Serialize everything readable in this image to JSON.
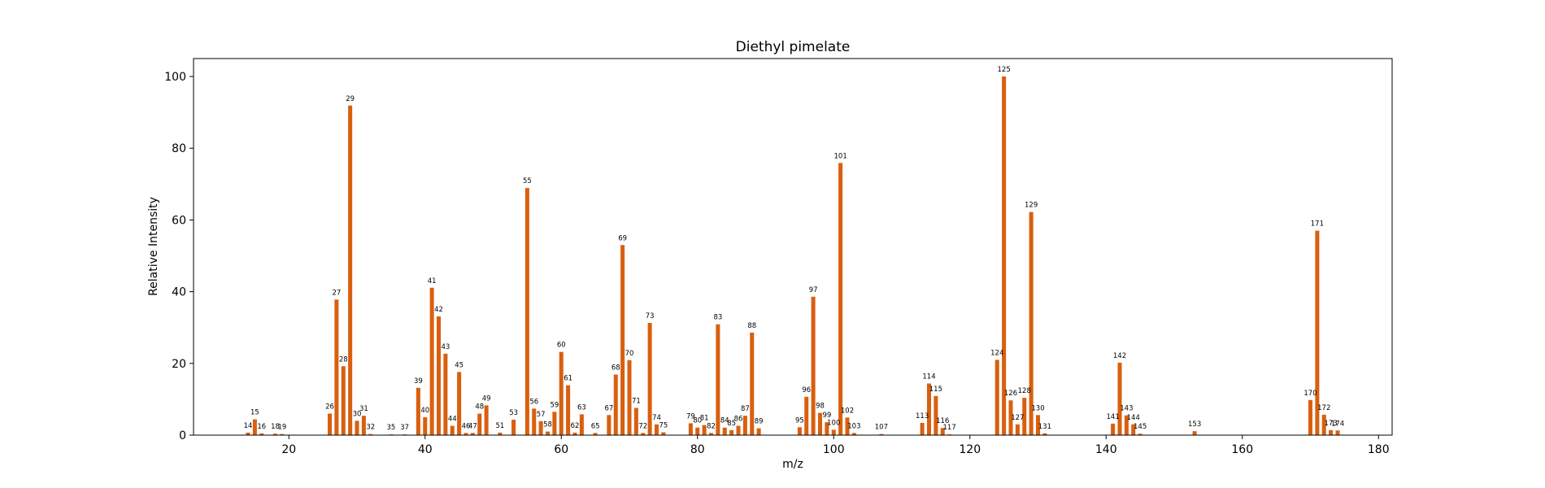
{
  "chart_data": {
    "type": "bar",
    "title": "Diethyl pimelate",
    "xlabel": "m/z",
    "ylabel": "Relative Intensity",
    "xlim": [
      6,
      182
    ],
    "ylim": [
      0,
      105
    ],
    "xticks": [
      20,
      40,
      60,
      80,
      100,
      120,
      140,
      160,
      180
    ],
    "yticks": [
      0,
      20,
      40,
      60,
      80,
      100
    ],
    "grid": false,
    "bar_color": "#d95f0e",
    "points": [
      {
        "mz": 14,
        "intensity": 0.7,
        "label": "14"
      },
      {
        "mz": 15,
        "intensity": 4.4,
        "label": "15"
      },
      {
        "mz": 16,
        "intensity": 0.5,
        "label": "16"
      },
      {
        "mz": 18,
        "intensity": 0.4,
        "label": "18"
      },
      {
        "mz": 19,
        "intensity": 0.3,
        "label": "19"
      },
      {
        "mz": 26,
        "intensity": 6.0,
        "label": "26"
      },
      {
        "mz": 27,
        "intensity": 37.8,
        "label": "27"
      },
      {
        "mz": 28,
        "intensity": 19.2,
        "label": "28"
      },
      {
        "mz": 29,
        "intensity": 91.9,
        "label": "29"
      },
      {
        "mz": 30,
        "intensity": 4.0,
        "label": "30"
      },
      {
        "mz": 31,
        "intensity": 5.4,
        "label": "31"
      },
      {
        "mz": 32,
        "intensity": 0.3,
        "label": "32"
      },
      {
        "mz": 35,
        "intensity": 0.2,
        "label": "35"
      },
      {
        "mz": 37,
        "intensity": 0.2,
        "label": "37"
      },
      {
        "mz": 39,
        "intensity": 13.2,
        "label": "39"
      },
      {
        "mz": 40,
        "intensity": 5.0,
        "label": "40"
      },
      {
        "mz": 41,
        "intensity": 41.1,
        "label": "41"
      },
      {
        "mz": 42,
        "intensity": 33.1,
        "label": "42"
      },
      {
        "mz": 43,
        "intensity": 22.7,
        "label": "43"
      },
      {
        "mz": 44,
        "intensity": 2.6,
        "label": "44"
      },
      {
        "mz": 45,
        "intensity": 17.6,
        "label": "45"
      },
      {
        "mz": 46,
        "intensity": 0.6,
        "label": "46"
      },
      {
        "mz": 47,
        "intensity": 0.6,
        "label": "47"
      },
      {
        "mz": 48,
        "intensity": 6.0,
        "label": "48"
      },
      {
        "mz": 49,
        "intensity": 8.3,
        "label": "49"
      },
      {
        "mz": 51,
        "intensity": 0.7,
        "label": "51"
      },
      {
        "mz": 53,
        "intensity": 4.3,
        "label": "53"
      },
      {
        "mz": 55,
        "intensity": 68.9,
        "label": "55"
      },
      {
        "mz": 56,
        "intensity": 7.4,
        "label": "56"
      },
      {
        "mz": 57,
        "intensity": 3.9,
        "label": "57"
      },
      {
        "mz": 58,
        "intensity": 1.0,
        "label": "58"
      },
      {
        "mz": 59,
        "intensity": 6.5,
        "label": "59"
      },
      {
        "mz": 60,
        "intensity": 23.2,
        "label": "60"
      },
      {
        "mz": 61,
        "intensity": 13.9,
        "label": "61"
      },
      {
        "mz": 62,
        "intensity": 0.7,
        "label": "62"
      },
      {
        "mz": 63,
        "intensity": 5.8,
        "label": "63"
      },
      {
        "mz": 65,
        "intensity": 0.6,
        "label": "65"
      },
      {
        "mz": 67,
        "intensity": 5.6,
        "label": "67"
      },
      {
        "mz": 68,
        "intensity": 16.9,
        "label": "68"
      },
      {
        "mz": 69,
        "intensity": 53.0,
        "label": "69"
      },
      {
        "mz": 70,
        "intensity": 20.9,
        "label": "70"
      },
      {
        "mz": 71,
        "intensity": 7.6,
        "label": "71"
      },
      {
        "mz": 72,
        "intensity": 0.6,
        "label": "72"
      },
      {
        "mz": 73,
        "intensity": 31.3,
        "label": "73"
      },
      {
        "mz": 74,
        "intensity": 3.0,
        "label": "74"
      },
      {
        "mz": 75,
        "intensity": 0.8,
        "label": "75"
      },
      {
        "mz": 79,
        "intensity": 3.3,
        "label": "79"
      },
      {
        "mz": 80,
        "intensity": 2.1,
        "label": "80"
      },
      {
        "mz": 81,
        "intensity": 2.8,
        "label": "81"
      },
      {
        "mz": 82,
        "intensity": 0.6,
        "label": "82"
      },
      {
        "mz": 83,
        "intensity": 30.9,
        "label": "83"
      },
      {
        "mz": 84,
        "intensity": 2.1,
        "label": "84"
      },
      {
        "mz": 85,
        "intensity": 1.4,
        "label": "85"
      },
      {
        "mz": 86,
        "intensity": 2.6,
        "label": "86"
      },
      {
        "mz": 87,
        "intensity": 5.4,
        "label": "87"
      },
      {
        "mz": 88,
        "intensity": 28.6,
        "label": "88"
      },
      {
        "mz": 89,
        "intensity": 1.9,
        "label": "89"
      },
      {
        "mz": 95,
        "intensity": 2.2,
        "label": "95"
      },
      {
        "mz": 96,
        "intensity": 10.7,
        "label": "96"
      },
      {
        "mz": 97,
        "intensity": 38.6,
        "label": "97"
      },
      {
        "mz": 98,
        "intensity": 6.2,
        "label": "98"
      },
      {
        "mz": 99,
        "intensity": 3.6,
        "label": "99"
      },
      {
        "mz": 100,
        "intensity": 1.5,
        "label": "100"
      },
      {
        "mz": 101,
        "intensity": 75.9,
        "label": "101"
      },
      {
        "mz": 102,
        "intensity": 4.9,
        "label": "102"
      },
      {
        "mz": 103,
        "intensity": 0.6,
        "label": "103"
      },
      {
        "mz": 107,
        "intensity": 0.3,
        "label": "107"
      },
      {
        "mz": 113,
        "intensity": 3.4,
        "label": "113"
      },
      {
        "mz": 114,
        "intensity": 14.4,
        "label": "114"
      },
      {
        "mz": 115,
        "intensity": 10.9,
        "label": "115"
      },
      {
        "mz": 116,
        "intensity": 2.0,
        "label": "116"
      },
      {
        "mz": 117,
        "intensity": 0.2,
        "label": "117"
      },
      {
        "mz": 124,
        "intensity": 21.0,
        "label": "124"
      },
      {
        "mz": 125,
        "intensity": 100.0,
        "label": "125"
      },
      {
        "mz": 126,
        "intensity": 9.7,
        "label": "126"
      },
      {
        "mz": 127,
        "intensity": 3.0,
        "label": "127"
      },
      {
        "mz": 128,
        "intensity": 10.4,
        "label": "128"
      },
      {
        "mz": 129,
        "intensity": 62.2,
        "label": "129"
      },
      {
        "mz": 130,
        "intensity": 5.6,
        "label": "130"
      },
      {
        "mz": 131,
        "intensity": 0.5,
        "label": "131"
      },
      {
        "mz": 141,
        "intensity": 3.2,
        "label": "141"
      },
      {
        "mz": 142,
        "intensity": 20.2,
        "label": "142"
      },
      {
        "mz": 143,
        "intensity": 5.5,
        "label": "143"
      },
      {
        "mz": 144,
        "intensity": 3.0,
        "label": "144"
      },
      {
        "mz": 145,
        "intensity": 0.4,
        "label": "145"
      },
      {
        "mz": 153,
        "intensity": 1.1,
        "label": "153"
      },
      {
        "mz": 170,
        "intensity": 9.8,
        "label": "170"
      },
      {
        "mz": 171,
        "intensity": 57.0,
        "label": "171"
      },
      {
        "mz": 172,
        "intensity": 5.7,
        "label": "172"
      },
      {
        "mz": 173,
        "intensity": 1.4,
        "label": "173"
      },
      {
        "mz": 174,
        "intensity": 1.3,
        "label": "174"
      }
    ]
  }
}
